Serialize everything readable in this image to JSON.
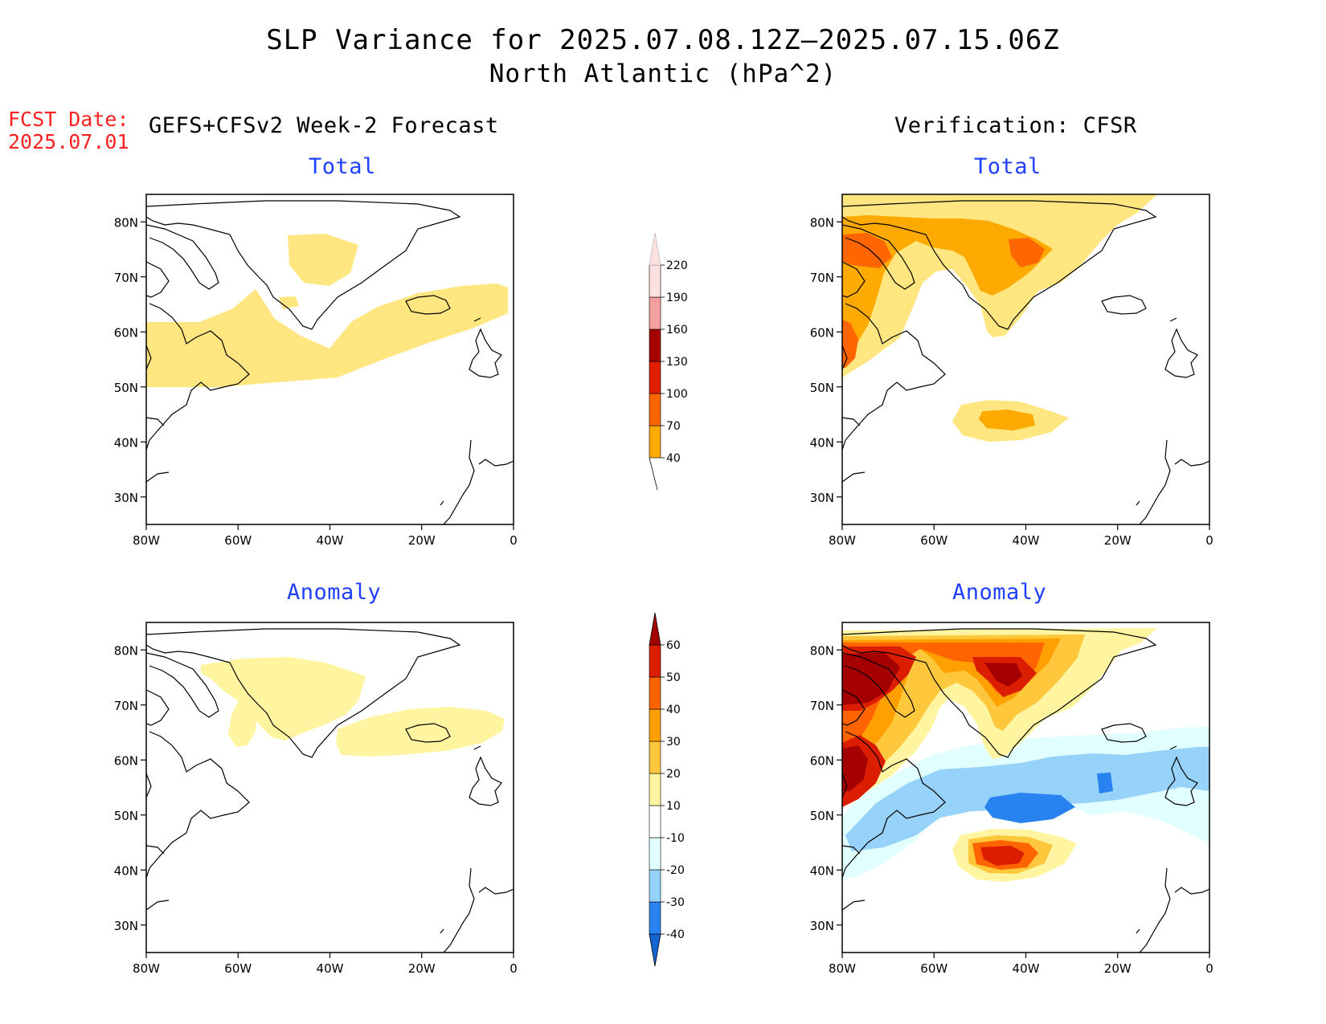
{
  "title": "SLP Variance for 2025.07.08.12Z—2025.07.15.06Z",
  "subtitle": "North Atlantic (hPa^2)",
  "forecast_date_label": "FCST Date:",
  "forecast_date": "2025.07.01",
  "left_column_header": "GEFS+CFSv2 Week-2 Forecast",
  "right_column_header": "Verification: CFSR",
  "panel_titles": {
    "forecast_total": "Total",
    "verification_total": "Total",
    "forecast_anomaly": "Anomaly",
    "verification_anomaly": "Anomaly"
  },
  "axes": {
    "lat_labels": [
      "80N",
      "70N",
      "60N",
      "50N",
      "40N",
      "30N"
    ],
    "lat_values": [
      80,
      70,
      60,
      50,
      40,
      30
    ],
    "lon_labels": [
      "80W",
      "60W",
      "40W",
      "20W",
      "0"
    ],
    "lon_values": [
      -80,
      -60,
      -40,
      -20,
      0
    ],
    "lat_range": [
      25,
      85
    ],
    "lon_range": [
      -80,
      0
    ]
  },
  "colorbars": {
    "total": {
      "levels": [
        "40",
        "70",
        "100",
        "130",
        "160",
        "190",
        "220"
      ],
      "colors": [
        "#ffe680",
        "#ffaa00",
        "#ff6600",
        "#e01e00",
        "#a50000",
        "#f4a0a0",
        "#fde0e0"
      ]
    },
    "anomaly": {
      "levels": [
        "-40",
        "-30",
        "-20",
        "-10",
        "10",
        "20",
        "30",
        "40",
        "50",
        "60"
      ],
      "colors": [
        "#1464d2",
        "#2882f0",
        "#96d2fa",
        "#e1ffff",
        "#ffffff",
        "#fff5a0",
        "#ffc83c",
        "#ffa000",
        "#ff6400",
        "#dc1e00",
        "#a50000"
      ]
    }
  },
  "chart_data": {
    "type": "heatmap",
    "title": "SLP Variance for 2025.07.08.12Z—2025.07.15.06Z",
    "subtitle": "North Atlantic (hPa^2)",
    "panels": [
      {
        "name": "GEFS+CFSv2 Week-2 Forecast — Total",
        "regions": [
          {
            "category": "40-70",
            "lat_range": [
              63,
              78
            ],
            "lon_range": [
              -50,
              -35
            ]
          },
          {
            "category": "40-70",
            "lat_range": [
              50,
              68
            ],
            "lon_range": [
              -80,
              0
            ]
          }
        ]
      },
      {
        "name": "Verification: CFSR — Total",
        "regions": [
          {
            "category": "40-70",
            "lat_range": [
              57,
              85
            ],
            "lon_range": [
              -80,
              -10
            ]
          },
          {
            "category": "70-100",
            "lat_range": [
              65,
              82
            ],
            "lon_range": [
              -80,
              -30
            ]
          },
          {
            "category": "100-130",
            "lat_range": [
              72,
              80
            ],
            "lon_range": [
              -80,
              -70
            ]
          },
          {
            "category": "100-130",
            "lat_range": [
              72,
              77
            ],
            "lon_range": [
              -45,
              -37
            ]
          },
          {
            "category": "100-130",
            "lat_range": [
              55,
              63
            ],
            "lon_range": [
              -80,
              -76
            ]
          },
          {
            "category": "40-70",
            "lat_range": [
              40,
              48
            ],
            "lon_range": [
              -57,
              -30
            ]
          },
          {
            "category": "70-100",
            "lat_range": [
              43,
              46
            ],
            "lon_range": [
              -50,
              -42
            ]
          }
        ]
      },
      {
        "name": "GEFS+CFSv2 Week-2 Forecast — Anomaly",
        "regions": [
          {
            "category": "10-20",
            "lat_range": [
              62,
              79
            ],
            "lon_range": [
              -68,
              -35
            ]
          },
          {
            "category": "10-20",
            "lat_range": [
              59,
              69
            ],
            "lon_range": [
              -38,
              -2
            ]
          }
        ]
      },
      {
        "name": "Verification: CFSR — Anomaly",
        "regions": [
          {
            "category": "20-60",
            "lat_range": [
              62,
              85
            ],
            "lon_range": [
              -80,
              -15
            ]
          },
          {
            "category": ">60",
            "lat_range": [
              70,
              80
            ],
            "lon_range": [
              -80,
              -65
            ]
          },
          {
            "category": ">60",
            "lat_range": [
              70,
              78
            ],
            "lon_range": [
              -45,
              -35
            ]
          },
          {
            "category": ">60",
            "lat_range": [
              53,
              62
            ],
            "lon_range": [
              -80,
              -70
            ]
          },
          {
            "category": "20-60",
            "lat_range": [
              40,
              47
            ],
            "lon_range": [
              -55,
              -30
            ]
          },
          {
            "category": "-10 to -30",
            "lat_range": [
              45,
              64
            ],
            "lon_range": [
              -80,
              0
            ]
          },
          {
            "category": "-30 to -40",
            "lat_range": [
              51,
              54
            ],
            "lon_range": [
              -50,
              -35
            ]
          }
        ]
      }
    ]
  }
}
